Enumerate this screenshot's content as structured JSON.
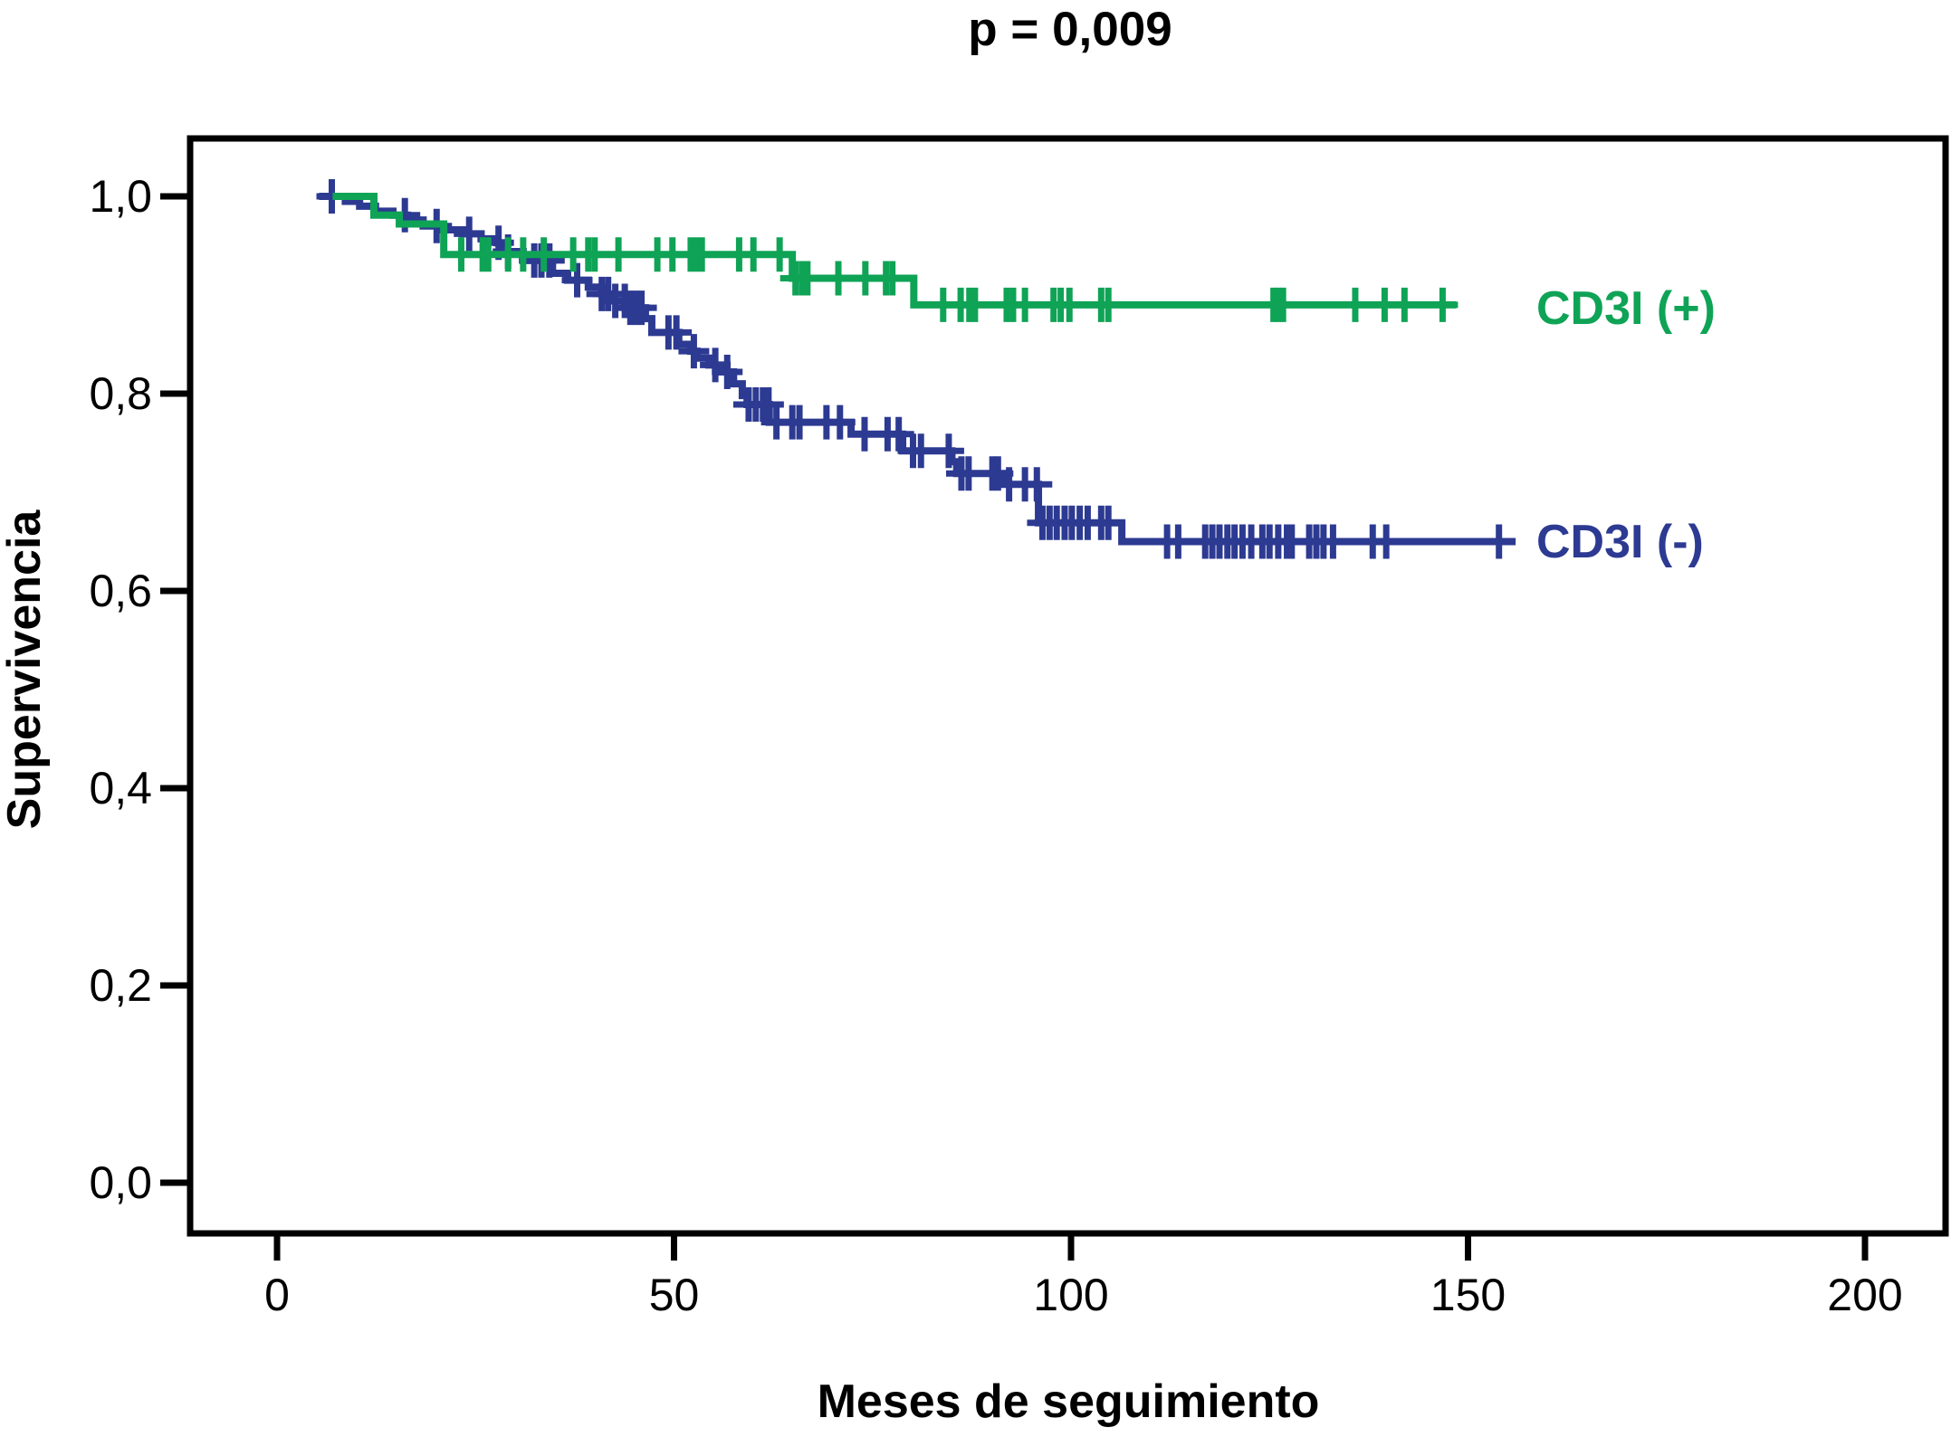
{
  "title": "p = 0,009",
  "chart_data": {
    "type": "line",
    "subtype": "kaplan-meier-step-curves",
    "title": "p = 0,009",
    "xlabel": "Meses de seguimiento",
    "ylabel": "Supervivencia",
    "x_ticks": [
      "0",
      "50",
      "100",
      "150",
      "200"
    ],
    "x_tick_values": [
      0,
      50,
      100,
      150,
      200
    ],
    "y_ticks": [
      "0,0",
      "0,2",
      "0,4",
      "0,6",
      "0,8",
      "1,0"
    ],
    "y_tick_values": [
      0.0,
      0.2,
      0.4,
      0.6,
      0.8,
      1.0
    ],
    "xlim": [
      -11,
      210
    ],
    "ylim": [
      -0.05,
      1.06
    ],
    "grid": false,
    "axis_color": "#000000",
    "background": "#ffffff",
    "series": [
      {
        "id": "cd3i-positive",
        "name": "CD3I (+)",
        "label": "CD3I (+)",
        "color": "#0fa356",
        "start_survival": 1.0,
        "points": [
          [
            7.0,
            1.0
          ],
          [
            12.2,
            0.981
          ],
          [
            15.4,
            0.972
          ],
          [
            21.0,
            0.941
          ],
          [
            64.9,
            0.917
          ],
          [
            80.2,
            0.89
          ]
        ],
        "end_month": 148.5,
        "censor_months": [
          23.2,
          25.9,
          26.6,
          29.1,
          31.0,
          33.6,
          37.3,
          39.2,
          40.0,
          43.0,
          47.9,
          49.8,
          52.1,
          52.8,
          53.5,
          58.2,
          60.0,
          63.3,
          65.3,
          66.1,
          66.8,
          70.7,
          74.1,
          76.7,
          77.5,
          83.9,
          86.1,
          87.2,
          87.9,
          91.9,
          92.7,
          94.2,
          97.8,
          98.7,
          99.8,
          103.8,
          104.7,
          125.5,
          126.1,
          126.7,
          135.8,
          139.5,
          142.0,
          146.8
        ]
      },
      {
        "id": "cd3i-negative",
        "name": "CD3I (-)",
        "label": "CD3I (-)",
        "color": "#2d3a92",
        "start_survival": 1.0,
        "points": [
          [
            5.3,
            1.0
          ],
          [
            8.6,
            0.995
          ],
          [
            10.4,
            0.99
          ],
          [
            12.4,
            0.985
          ],
          [
            14.6,
            0.981
          ],
          [
            16.4,
            0.976
          ],
          [
            18.4,
            0.97
          ],
          [
            20.5,
            0.966
          ],
          [
            23.4,
            0.962
          ],
          [
            25.7,
            0.957
          ],
          [
            27.7,
            0.953
          ],
          [
            28.7,
            0.944
          ],
          [
            31.0,
            0.935
          ],
          [
            34.7,
            0.922
          ],
          [
            36.6,
            0.915
          ],
          [
            39.2,
            0.908
          ],
          [
            40.9,
            0.901
          ],
          [
            42.4,
            0.894
          ],
          [
            44.2,
            0.887
          ],
          [
            46.4,
            0.876
          ],
          [
            47.2,
            0.862
          ],
          [
            50.6,
            0.85
          ],
          [
            52.1,
            0.843
          ],
          [
            52.9,
            0.836
          ],
          [
            54.4,
            0.829
          ],
          [
            56.0,
            0.822
          ],
          [
            57.5,
            0.81
          ],
          [
            58.6,
            0.798
          ],
          [
            59.2,
            0.789
          ],
          [
            62.0,
            0.771
          ],
          [
            72.3,
            0.759
          ],
          [
            78.8,
            0.742
          ],
          [
            85.0,
            0.731
          ],
          [
            85.6,
            0.719
          ],
          [
            91.6,
            0.708
          ],
          [
            95.9,
            0.669
          ],
          [
            106.4,
            0.65
          ]
        ],
        "end_month": 156.0,
        "censor_months": [
          6.9,
          16.1,
          20.1,
          24.2,
          27.9,
          29.1,
          32.4,
          33.3,
          34.3,
          37.8,
          40.9,
          41.7,
          42.6,
          43.8,
          44.5,
          45.2,
          45.9,
          49.3,
          50.3,
          52.5,
          55.2,
          56.7,
          59.4,
          60.3,
          61.2,
          61.9,
          62.9,
          64.9,
          65.8,
          69.2,
          70.9,
          74.0,
          76.9,
          78.3,
          80.1,
          81.1,
          84.6,
          86.2,
          87.1,
          90.1,
          90.8,
          92.2,
          94.2,
          95.7,
          96.4,
          97.3,
          98.2,
          99.2,
          100.1,
          101.1,
          102.1,
          103.8,
          104.7,
          112.1,
          113.5,
          116.9,
          117.8,
          118.7,
          119.7,
          120.6,
          121.6,
          122.7,
          124.1,
          125.0,
          126.1,
          127.2,
          127.8,
          130.0,
          130.9,
          131.8,
          133.0,
          138.0,
          139.7,
          153.9
        ]
      }
    ]
  }
}
